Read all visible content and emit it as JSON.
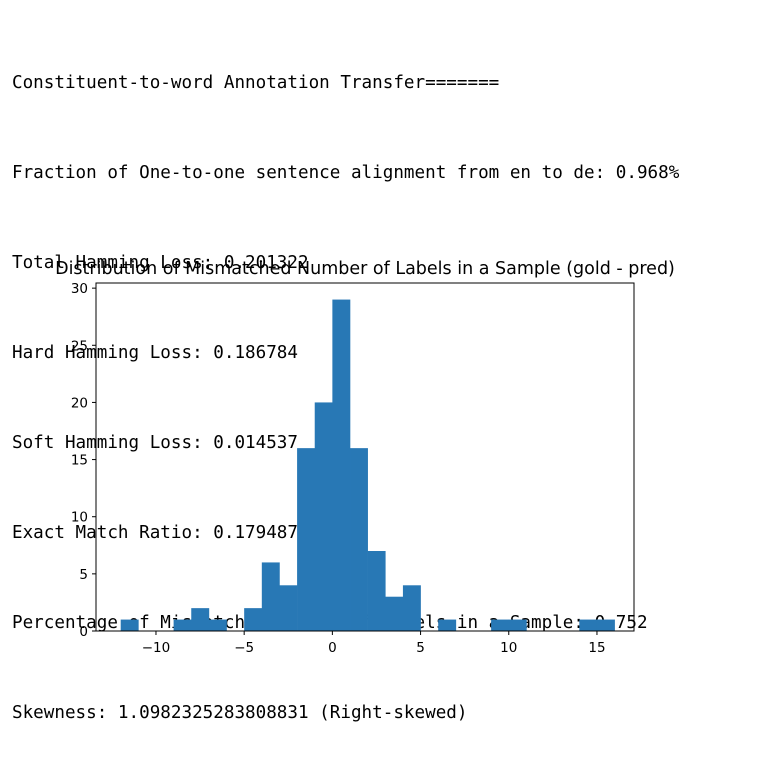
{
  "output_lines": [
    "Constituent-to-word Annotation Transfer=======",
    "Fraction of One-to-one sentence alignment from en to de: 0.968%",
    "Total Hamming Loss: 0.201322",
    "Hard Hamming Loss: 0.186784",
    "Soft Hamming Loss: 0.014537",
    "Exact Match Ratio: 0.179487",
    "Percentage of Mismatched Number of Labels in a Sample: 0.752",
    "Skewness: 1.0982325283808831 (Right-skewed)"
  ],
  "chart_data": {
    "type": "bar",
    "title": "Distribution of Mismatched Number of Labels in a Sample (gold - pred)",
    "xlabel": "",
    "ylabel": "",
    "bar_color": "#2878b5",
    "grid": false,
    "xlim": [
      -13.4,
      17.1
    ],
    "ylim": [
      0,
      30.45
    ],
    "bin_width": 1.0,
    "bin_starts": [
      -12,
      -11,
      -10,
      -9,
      -8,
      -7,
      -6,
      -5,
      -4,
      -3,
      -2,
      -1,
      0,
      1,
      2,
      3,
      4,
      5,
      6,
      7,
      8,
      9,
      10,
      11,
      12,
      13,
      14,
      15
    ],
    "counts": [
      1,
      0,
      0,
      1,
      2,
      1,
      0,
      2,
      6,
      4,
      16,
      20,
      29,
      16,
      7,
      3,
      4,
      0,
      1,
      0,
      0,
      1,
      1,
      0,
      0,
      0,
      1,
      1
    ],
    "x_ticks": [
      -10,
      -5,
      0,
      5,
      10,
      15
    ],
    "x_tick_labels": [
      "−10",
      "−5",
      "0",
      "5",
      "10",
      "15"
    ],
    "y_ticks": [
      0,
      5,
      10,
      15,
      20,
      25,
      30
    ],
    "y_tick_labels": [
      "0",
      "5",
      "10",
      "15",
      "20",
      "25",
      "30"
    ]
  }
}
